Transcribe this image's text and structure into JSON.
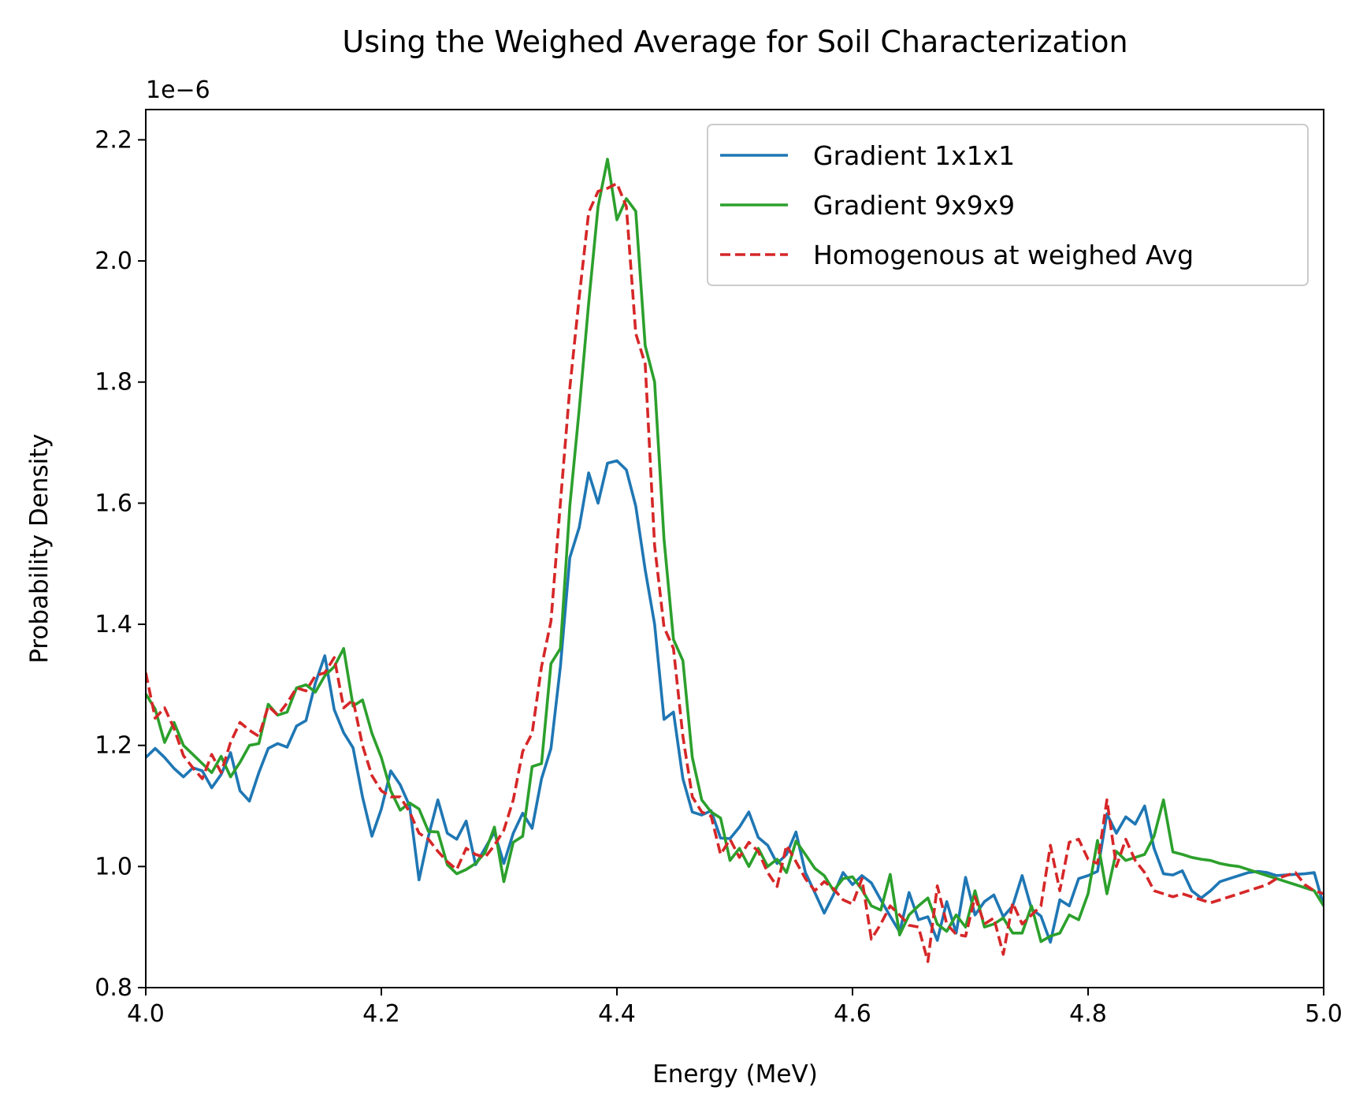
{
  "chart_data": {
    "type": "line",
    "title": "Using the Weighed Average for Soil Characterization",
    "xlabel": "Energy (MeV)",
    "ylabel": "Probability Density",
    "y_offset_text": "1e−6",
    "xlim": [
      4.0,
      5.0
    ],
    "ylim": [
      0.8,
      2.25
    ],
    "xticks": [
      4.0,
      4.2,
      4.4,
      4.6,
      4.8,
      5.0
    ],
    "xtick_labels": [
      "4.0",
      "4.2",
      "4.4",
      "4.6",
      "4.8",
      "5.0"
    ],
    "yticks": [
      0.8,
      1.0,
      1.2,
      1.4,
      1.6,
      1.8,
      2.0,
      2.2
    ],
    "ytick_labels": [
      "0.8",
      "1.0",
      "1.2",
      "1.4",
      "1.6",
      "1.8",
      "2.0",
      "2.2"
    ],
    "grid": false,
    "legend_position": "top-right",
    "x": [
      4.0,
      4.008,
      4.016,
      4.024,
      4.032,
      4.04,
      4.048,
      4.056,
      4.064,
      4.072,
      4.08,
      4.088,
      4.096,
      4.104,
      4.112,
      4.12,
      4.128,
      4.136,
      4.144,
      4.152,
      4.16,
      4.168,
      4.176,
      4.184,
      4.192,
      4.2,
      4.208,
      4.216,
      4.224,
      4.232,
      4.24,
      4.248,
      4.256,
      4.264,
      4.272,
      4.28,
      4.288,
      4.296,
      4.304,
      4.312,
      4.32,
      4.328,
      4.336,
      4.344,
      4.352,
      4.36,
      4.368,
      4.376,
      4.384,
      4.392,
      4.4,
      4.408,
      4.416,
      4.424,
      4.432,
      4.44,
      4.448,
      4.456,
      4.464,
      4.472,
      4.48,
      4.488,
      4.496,
      4.504,
      4.512,
      4.52,
      4.528,
      4.536,
      4.544,
      4.552,
      4.56,
      4.568,
      4.576,
      4.584,
      4.592,
      4.6,
      4.608,
      4.616,
      4.624,
      4.632,
      4.64,
      4.648,
      4.656,
      4.664,
      4.672,
      4.68,
      4.688,
      4.696,
      4.704,
      4.712,
      4.72,
      4.728,
      4.736,
      4.744,
      4.752,
      4.76,
      4.768,
      4.776,
      4.784,
      4.792,
      4.8,
      4.808,
      4.816,
      4.824,
      4.832,
      4.84,
      4.848,
      4.856,
      4.864,
      4.872,
      4.88,
      4.888,
      4.896,
      4.904,
      4.912,
      4.92,
      4.928,
      4.936,
      4.944,
      4.952,
      4.96,
      4.968,
      4.976,
      4.984,
      4.992,
      5.0
    ],
    "series": [
      {
        "name": "Gradient 1x1x1",
        "color": "#1f77b4",
        "dash": "solid",
        "values": [
          1.18,
          1.195,
          1.18,
          1.162,
          1.148,
          1.163,
          1.158,
          1.13,
          1.152,
          1.188,
          1.125,
          1.108,
          1.155,
          1.195,
          1.203,
          1.197,
          1.232,
          1.241,
          1.303,
          1.348,
          1.259,
          1.221,
          1.196,
          1.115,
          1.05,
          1.095,
          1.158,
          1.135,
          1.1,
          0.978,
          1.05,
          1.11,
          1.055,
          1.045,
          1.075,
          1.003,
          1.03,
          1.057,
          1.005,
          1.055,
          1.088,
          1.063,
          1.145,
          1.195,
          1.33,
          1.51,
          1.56,
          1.65,
          1.6,
          1.666,
          1.67,
          1.655,
          1.595,
          1.49,
          1.4,
          1.243,
          1.255,
          1.145,
          1.09,
          1.085,
          1.092,
          1.047,
          1.046,
          1.065,
          1.09,
          1.048,
          1.035,
          1.005,
          1.02,
          1.057,
          0.99,
          0.957,
          0.923,
          0.954,
          0.99,
          0.97,
          0.985,
          0.973,
          0.945,
          0.918,
          0.892,
          0.957,
          0.912,
          0.917,
          0.878,
          0.942,
          0.89,
          0.982,
          0.92,
          0.942,
          0.953,
          0.917,
          0.935,
          0.985,
          0.93,
          0.918,
          0.875,
          0.945,
          0.935,
          0.98,
          0.985,
          0.992,
          1.087,
          1.055,
          1.082,
          1.07,
          1.1,
          1.03,
          0.988,
          0.986,
          0.993,
          0.96,
          0.948,
          0.96,
          0.975,
          0.98,
          0.985,
          0.99,
          0.992,
          0.99,
          0.985,
          0.986,
          0.987,
          0.988,
          0.99,
          0.935
        ]
      },
      {
        "name": "Gradient 9x9x9",
        "color": "#2ca02c",
        "dash": "solid",
        "values": [
          1.285,
          1.26,
          1.205,
          1.238,
          1.2,
          1.185,
          1.17,
          1.155,
          1.182,
          1.148,
          1.172,
          1.2,
          1.203,
          1.268,
          1.25,
          1.255,
          1.295,
          1.3,
          1.288,
          1.315,
          1.33,
          1.36,
          1.265,
          1.275,
          1.22,
          1.18,
          1.125,
          1.093,
          1.105,
          1.095,
          1.058,
          1.057,
          1.003,
          0.988,
          0.995,
          1.005,
          1.023,
          1.065,
          0.975,
          1.04,
          1.05,
          1.165,
          1.17,
          1.335,
          1.36,
          1.595,
          1.755,
          1.93,
          2.09,
          2.168,
          2.068,
          2.103,
          2.082,
          1.86,
          1.8,
          1.54,
          1.375,
          1.34,
          1.18,
          1.11,
          1.09,
          1.08,
          1.01,
          1.03,
          1.0,
          1.03,
          1.0,
          1.012,
          0.99,
          1.042,
          1.02,
          0.997,
          0.985,
          0.96,
          0.98,
          0.983,
          0.962,
          0.935,
          0.928,
          0.987,
          0.887,
          0.92,
          0.935,
          0.948,
          0.905,
          0.893,
          0.92,
          0.9,
          0.96,
          0.9,
          0.905,
          0.915,
          0.89,
          0.89,
          0.935,
          0.876,
          0.885,
          0.89,
          0.92,
          0.912,
          0.955,
          1.043,
          0.955,
          1.025,
          1.01,
          1.015,
          1.02,
          1.05,
          1.11,
          1.024,
          1.02,
          1.015,
          1.012,
          1.01,
          1.005,
          1.002,
          1.0,
          0.995,
          0.99,
          0.985,
          0.98,
          0.975,
          0.97,
          0.965,
          0.96,
          0.935
        ]
      },
      {
        "name": "Homogenous at weighed Avg",
        "color": "#d62728",
        "dash": "dashed",
        "values": [
          1.32,
          1.245,
          1.262,
          1.228,
          1.183,
          1.163,
          1.145,
          1.185,
          1.155,
          1.205,
          1.238,
          1.225,
          1.215,
          1.265,
          1.25,
          1.27,
          1.295,
          1.29,
          1.315,
          1.32,
          1.345,
          1.262,
          1.275,
          1.2,
          1.15,
          1.125,
          1.115,
          1.115,
          1.09,
          1.055,
          1.045,
          1.025,
          1.008,
          0.995,
          1.03,
          1.02,
          1.015,
          1.035,
          1.06,
          1.11,
          1.19,
          1.22,
          1.33,
          1.405,
          1.6,
          1.79,
          1.94,
          2.08,
          2.115,
          2.12,
          2.128,
          2.09,
          1.88,
          1.83,
          1.53,
          1.395,
          1.36,
          1.215,
          1.115,
          1.09,
          1.083,
          1.02,
          1.045,
          1.015,
          1.04,
          1.025,
          0.99,
          0.967,
          1.035,
          1.008,
          0.98,
          0.96,
          0.975,
          0.963,
          0.945,
          0.938,
          0.98,
          0.88,
          0.905,
          0.935,
          0.92,
          0.903,
          0.9,
          0.843,
          0.968,
          0.905,
          0.888,
          0.885,
          0.95,
          0.905,
          0.915,
          0.855,
          0.94,
          0.905,
          0.92,
          0.935,
          1.035,
          0.96,
          1.04,
          1.045,
          1.012,
          1.005,
          1.11,
          1.0,
          1.045,
          1.01,
          0.99,
          0.96,
          0.955,
          0.95,
          0.955,
          0.95,
          0.945,
          0.94,
          0.945,
          0.95,
          0.955,
          0.96,
          0.965,
          0.97,
          0.98,
          0.985,
          0.99,
          0.97,
          0.96,
          0.955
        ]
      }
    ]
  }
}
